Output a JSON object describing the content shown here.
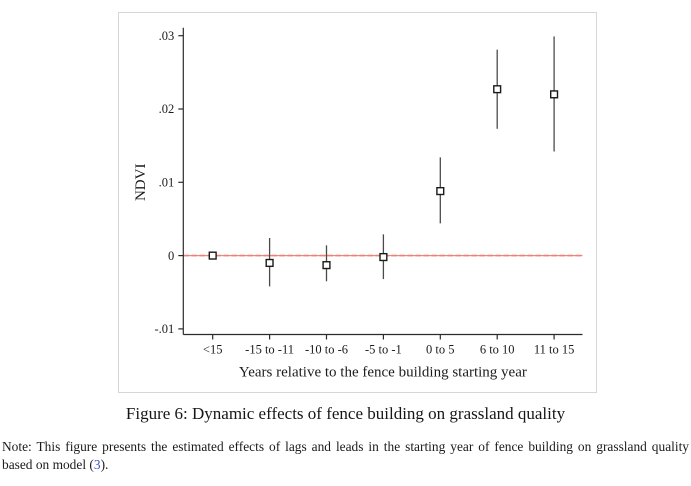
{
  "caption": {
    "text": "Figure 6: Dynamic effects of fence building on grassland quality"
  },
  "note": {
    "before": "Note: This figure presents the estimated effects of lags and leads in the starting year of fence building on grassland quality based on model (",
    "link_text": "3",
    "after": ")."
  },
  "colors": {
    "link_blue": "#3d55cc",
    "text": "#1b1b1b",
    "panel_border": "#d6d6d6"
  },
  "chart_data": {
    "type": "scatter",
    "subtype": "coefficient-plot-with-ci",
    "title": "",
    "xlabel": "Years relative to the fence building starting year",
    "ylabel": "NDVI",
    "categories": [
      "<15",
      "-15 to -11",
      "-10 to -6",
      "-5 to -1",
      "0 to 5",
      "6 to 10",
      "11 to 15"
    ],
    "estimates": [
      0,
      -0.001,
      -0.0013,
      -0.0002,
      0.0088,
      0.0227,
      0.022
    ],
    "ci_low": [
      0,
      -0.0042,
      -0.0035,
      -0.0032,
      0.0044,
      0.0173,
      0.0142
    ],
    "ci_high": [
      0,
      0.0024,
      0.0014,
      0.0029,
      0.0134,
      0.0281,
      0.0299
    ],
    "yticks": {
      "values": [
        -0.01,
        0,
        0.01,
        0.02,
        0.03
      ],
      "labels": [
        "-.01",
        "0",
        ".01",
        ".02",
        ".03"
      ]
    },
    "ylim": [
      -0.0118,
      0.0312
    ],
    "grid": false,
    "legend": false,
    "ref_line": {
      "y": 0,
      "color": "#fa7a70",
      "under_color": "#9a9a9a",
      "style": "dashed-over-gray"
    },
    "marker": {
      "shape": "hollow-square",
      "fill": "#ffffff",
      "stroke": "#1a1a1a"
    },
    "ci_color": "#4a4a4a",
    "axis_color": "#2b2b2b"
  }
}
